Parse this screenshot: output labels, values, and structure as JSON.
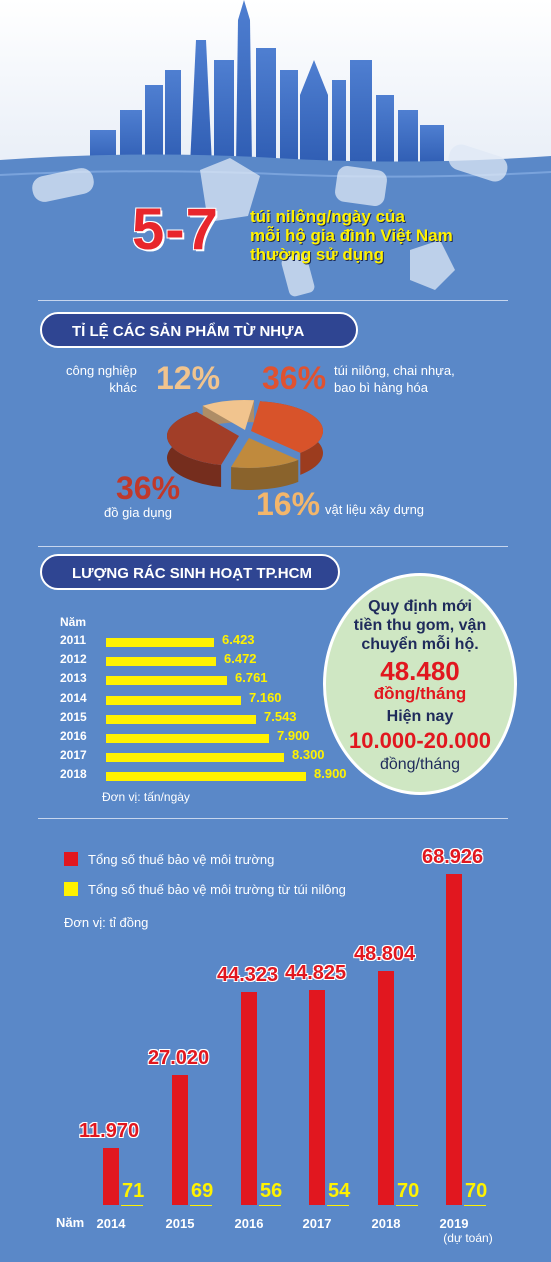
{
  "headline": {
    "big_number": "5-7",
    "lines": [
      "túi nilông/ngày của",
      "mỗi hộ gia đình Việt Nam",
      "thường sử dụng"
    ]
  },
  "section1": {
    "title": "TỈ LỆ CÁC SẢN PHẨM TỪ NHỰA",
    "slices": [
      {
        "pct": "12%",
        "label_lines": [
          "công nghiệp",
          "khác"
        ],
        "color": "#f1c48e"
      },
      {
        "pct": "36%",
        "label_lines": [
          "túi nilông, chai nhựa,",
          "bao bì hàng hóa"
        ],
        "color": "#d8532a"
      },
      {
        "pct": "16%",
        "label_lines": [
          "vật liệu xây dựng"
        ],
        "color": "#c08a3d"
      },
      {
        "pct": "36%",
        "label_lines": [
          "đồ gia dụng"
        ],
        "color": "#a23e28"
      }
    ]
  },
  "section2": {
    "title": "LƯỢNG RÁC SINH HOẠT TP.HCM",
    "year_header": "Năm",
    "unit": "Đơn vị: tấn/ngày",
    "callout": {
      "line1": "Quy định mới",
      "line2": "tiền thu gom, vận",
      "line3": "chuyển mỗi hộ.",
      "new_value": "48.480",
      "new_unit": "đồng/tháng",
      "current_label": "Hiện nay",
      "current_value": "10.000-20.000",
      "current_unit": "đồng/tháng"
    }
  },
  "section3": {
    "legend": [
      {
        "label": "Tổng số thuế bảo vệ môi trường",
        "color": "#e1171f"
      },
      {
        "label": "Tổng số thuế bảo vệ môi trường từ túi nilông",
        "color": "#fff200"
      }
    ],
    "unit": "Đơn vị: tỉ đồng",
    "year_header": "Năm",
    "note_2019": "(dự toán)"
  },
  "chart_data": [
    {
      "type": "pie",
      "title": "TỈ LỆ CÁC SẢN PHẨM TỪ NHỰA",
      "categories": [
        "công nghiệp khác",
        "túi nilông, chai nhựa, bao bì hàng hóa",
        "vật liệu xây dựng",
        "đồ gia dụng"
      ],
      "values": [
        12,
        36,
        16,
        36
      ]
    },
    {
      "type": "bar",
      "title": "LƯỢNG RÁC SINH HOẠT TP.HCM",
      "categories": [
        "2011",
        "2012",
        "2013",
        "2014",
        "2015",
        "2016",
        "2017",
        "2018"
      ],
      "values": [
        6423,
        6472,
        6761,
        7160,
        7543,
        7900,
        8300,
        8900
      ],
      "labels": [
        "6.423",
        "6.472",
        "6.761",
        "7.160",
        "7.543",
        "7.900",
        "8.300",
        "8.900"
      ],
      "unit": "Đơn vị: tấn/ngày"
    },
    {
      "type": "bar",
      "categories": [
        "2014",
        "2015",
        "2016",
        "2017",
        "2018",
        "2019"
      ],
      "series": [
        {
          "name": "Tổng số thuế bảo vệ môi trường",
          "values": [
            11970,
            27020,
            44323,
            44825,
            48804,
            68926
          ],
          "labels": [
            "11.970",
            "27.020",
            "44.323",
            "44.825",
            "48.804",
            "68.926"
          ]
        },
        {
          "name": "Tổng số thuế bảo vệ môi trường từ túi nilông",
          "values": [
            71,
            69,
            56,
            54,
            70,
            70
          ],
          "labels": [
            "71",
            "69",
            "56",
            "54",
            "70",
            "70"
          ]
        }
      ],
      "unit": "Đơn vị: tỉ đồng"
    }
  ]
}
